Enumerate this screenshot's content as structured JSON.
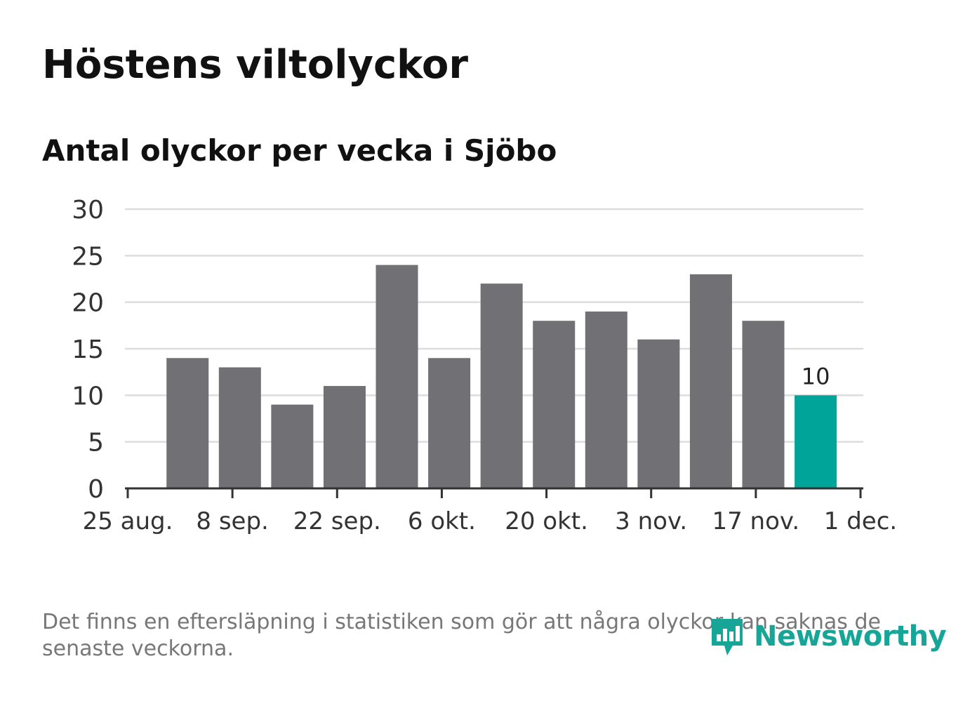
{
  "title": "Höstens viltolyckor",
  "subtitle": "Antal olyckor per vecka i Sjöbo",
  "footnote": "Det finns en eftersläpning i statistiken som gör att några olyckor kan saknas de senaste veckorna.",
  "logo_text": "Newsworthy",
  "colors": {
    "bar": "#707075",
    "highlight": "#00a499",
    "grid": "#dddddd",
    "axis": "#333333",
    "brand": "#17a597"
  },
  "chart_data": {
    "type": "bar",
    "x_axis_type": "date",
    "x": [
      "2019-09-02",
      "2019-09-09",
      "2019-09-16",
      "2019-09-23",
      "2019-09-30",
      "2019-10-07",
      "2019-10-14",
      "2019-10-21",
      "2019-10-28",
      "2019-11-04",
      "2019-11-11",
      "2019-11-18",
      "2019-11-25"
    ],
    "values": [
      14,
      13,
      9,
      11,
      24,
      14,
      22,
      18,
      19,
      16,
      23,
      18,
      10
    ],
    "highlight_index": 12,
    "data_labels": [
      {
        "index": 12,
        "text": "10"
      }
    ],
    "x_ticks": [
      "25 aug.",
      "8 sep.",
      "22 sep.",
      "6 okt.",
      "20 okt.",
      "3 nov.",
      "17 nov.",
      "1 dec."
    ],
    "x_tick_dates": [
      "2019-08-25",
      "2019-09-08",
      "2019-09-22",
      "2019-10-06",
      "2019-10-20",
      "2019-11-03",
      "2019-11-17",
      "2019-12-01"
    ],
    "y_ticks": [
      0,
      5,
      10,
      15,
      20,
      25,
      30
    ],
    "ylim": [
      0,
      30
    ],
    "grid": true
  }
}
